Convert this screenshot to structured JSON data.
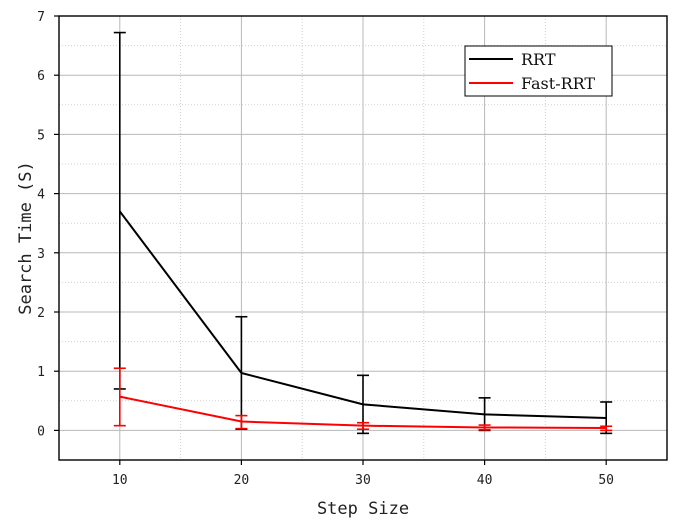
{
  "chart_data": {
    "type": "line",
    "title": "",
    "xlabel": "Step Size",
    "ylabel": "Search Time (S)",
    "x": [
      10,
      20,
      30,
      40,
      50
    ],
    "xlim": [
      5,
      55
    ],
    "ylim": [
      -0.5,
      7
    ],
    "xticks": [
      "10",
      "20",
      "30",
      "40",
      "50"
    ],
    "yticks": [
      "0",
      "1",
      "2",
      "3",
      "4",
      "5",
      "6",
      "7"
    ],
    "grid": true,
    "legend_position": "top-right",
    "series": [
      {
        "name": "RRT",
        "color": "#000000",
        "values": [
          3.7,
          0.97,
          0.44,
          0.27,
          0.21
        ],
        "error_low": [
          0.7,
          0.02,
          -0.05,
          0.0,
          -0.05
        ],
        "error_high": [
          6.72,
          1.92,
          0.93,
          0.55,
          0.48
        ]
      },
      {
        "name": "Fast-RRT",
        "color": "#ff0000",
        "values": [
          0.57,
          0.15,
          0.08,
          0.05,
          0.04
        ],
        "error_low": [
          0.08,
          0.03,
          0.02,
          0.01,
          0.0
        ],
        "error_high": [
          1.05,
          0.25,
          0.13,
          0.09,
          0.07
        ]
      }
    ]
  }
}
